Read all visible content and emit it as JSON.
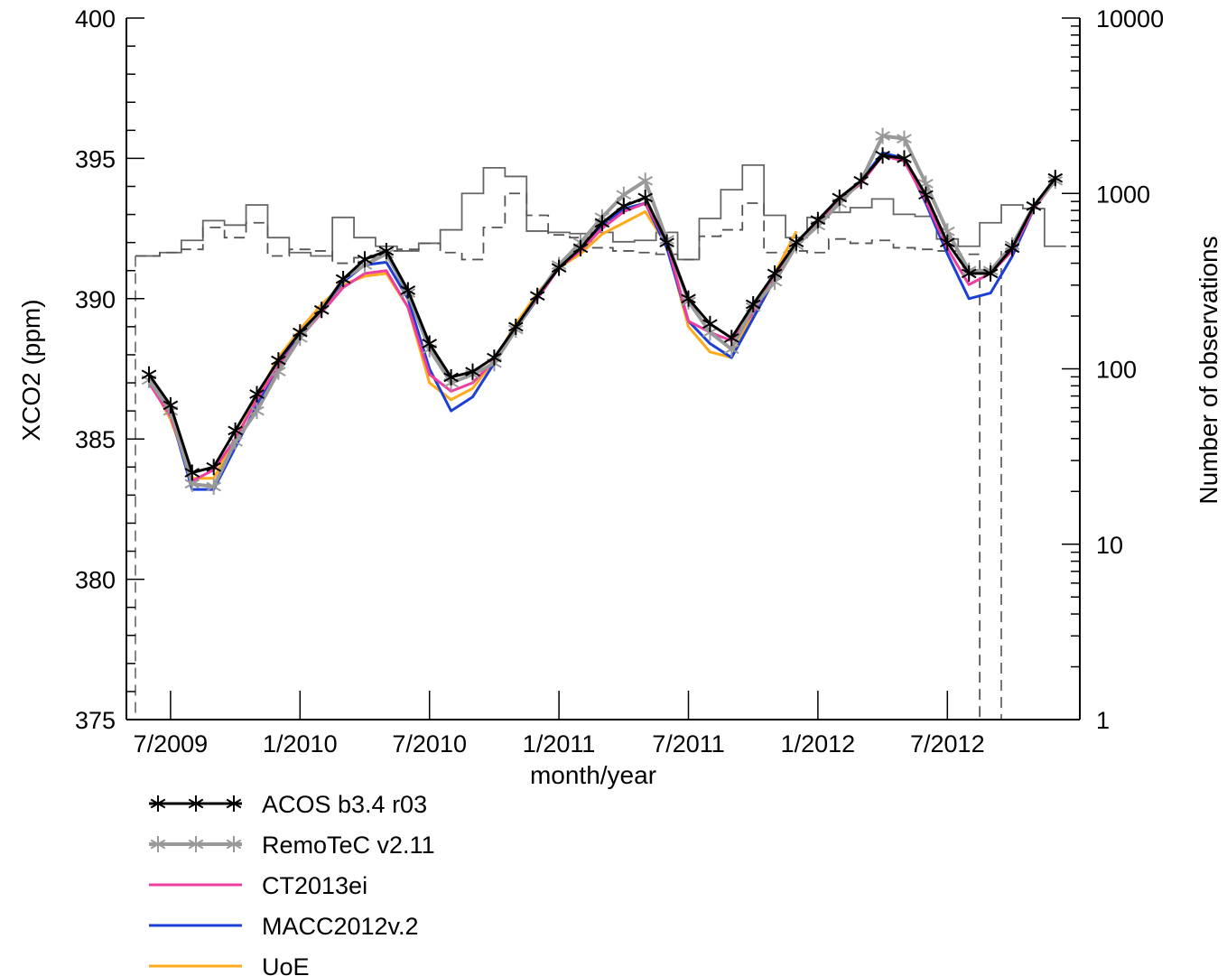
{
  "chart_data": {
    "type": "line",
    "title": "",
    "xlabel": "month/year",
    "ylabel": "XCO2 (ppm)",
    "y2label": "Number of observations",
    "ylim": [
      375,
      400
    ],
    "y2lim": [
      1,
      10000
    ],
    "y2scale": "log",
    "yticks": [
      "375",
      "380",
      "385",
      "390",
      "395",
      "400"
    ],
    "y2ticks": [
      "1",
      "10",
      "100",
      "1000",
      "10000"
    ],
    "xticks": [
      "7/2009",
      "1/2010",
      "7/2010",
      "1/2011",
      "7/2011",
      "1/2012",
      "7/2012"
    ],
    "x": [
      "6/2009",
      "7/2009",
      "8/2009",
      "9/2009",
      "10/2009",
      "11/2009",
      "12/2009",
      "1/2010",
      "2/2010",
      "3/2010",
      "4/2010",
      "5/2010",
      "6/2010",
      "7/2010",
      "8/2010",
      "9/2010",
      "10/2010",
      "11/2010",
      "12/2010",
      "1/2011",
      "2/2011",
      "3/2011",
      "4/2011",
      "5/2011",
      "6/2011",
      "7/2011",
      "8/2011",
      "9/2011",
      "10/2011",
      "11/2011",
      "12/2011",
      "1/2012",
      "2/2012",
      "3/2012",
      "4/2012",
      "5/2012",
      "6/2012",
      "7/2012",
      "8/2012",
      "9/2012",
      "10/2012",
      "11/2012",
      "12/2012"
    ],
    "series": [
      {
        "name": "ACOS b3.4 r03",
        "color": "#000000",
        "marker": "star",
        "values": [
          387.3,
          386.2,
          383.8,
          384.0,
          385.3,
          386.6,
          387.8,
          388.8,
          389.6,
          390.7,
          391.4,
          391.7,
          390.3,
          388.4,
          387.2,
          387.4,
          387.9,
          389.0,
          390.1,
          391.1,
          391.8,
          392.7,
          393.3,
          393.6,
          392.0,
          390.0,
          389.1,
          388.6,
          389.8,
          390.9,
          392.0,
          392.8,
          393.6,
          394.2,
          395.1,
          395.0,
          393.7,
          392.0,
          390.9,
          390.9,
          391.8,
          393.3,
          394.3
        ]
      },
      {
        "name": "RemoTeC v2.11",
        "color": "#999999",
        "marker": "star",
        "values": [
          387.1,
          386.0,
          383.4,
          383.3,
          384.9,
          386.0,
          387.4,
          388.6,
          389.6,
          390.7,
          391.2,
          391.6,
          390.2,
          388.2,
          387.0,
          387.3,
          387.7,
          388.9,
          390.1,
          391.2,
          392.0,
          392.9,
          393.7,
          394.2,
          392.1,
          389.9,
          388.8,
          388.2,
          389.7,
          390.6,
          391.9,
          392.6,
          393.4,
          394.2,
          395.8,
          395.7,
          394.1,
          392.4,
          391.0,
          391.0,
          391.9,
          393.3,
          394.2
        ]
      },
      {
        "name": "CT2013ei",
        "color": "#ee3fa0",
        "marker": "none",
        "values": [
          387.0,
          385.8,
          383.5,
          383.9,
          385.0,
          386.4,
          387.6,
          388.6,
          389.5,
          390.4,
          390.9,
          391.0,
          389.7,
          387.3,
          386.7,
          387.0,
          387.8,
          389.0,
          390.0,
          391.1,
          391.7,
          392.5,
          393.1,
          393.4,
          392.0,
          389.2,
          388.8,
          388.5,
          389.5,
          390.8,
          391.9,
          392.7,
          393.5,
          394.1,
          395.1,
          394.9,
          393.5,
          391.8,
          390.5,
          390.9,
          391.7,
          393.2,
          394.2
        ]
      },
      {
        "name": "MACC2012v.2",
        "color": "#1c3fd6",
        "marker": "none",
        "values": [
          387.0,
          385.9,
          383.2,
          383.2,
          384.7,
          386.2,
          387.6,
          388.7,
          389.6,
          390.6,
          391.2,
          391.3,
          390.0,
          387.5,
          386.0,
          386.5,
          387.7,
          388.9,
          390.0,
          391.1,
          391.8,
          392.6,
          393.2,
          393.4,
          391.8,
          389.2,
          388.4,
          387.9,
          389.3,
          390.7,
          392.0,
          392.7,
          393.5,
          394.2,
          395.2,
          395.0,
          393.4,
          391.6,
          390.0,
          390.2,
          391.5,
          393.2,
          394.3
        ]
      },
      {
        "name": "UoE",
        "color": "#ffaa1a",
        "marker": "none",
        "values": [
          387.1,
          385.7,
          383.6,
          383.6,
          385.0,
          386.5,
          387.9,
          388.9,
          389.8,
          390.5,
          390.8,
          390.9,
          389.7,
          387.0,
          386.4,
          386.8,
          387.8,
          389.1,
          390.2,
          391.1,
          391.6,
          392.3,
          392.7,
          393.1,
          391.9,
          389.0,
          388.1,
          387.9,
          389.5,
          390.9,
          392.4,
          null,
          null,
          null,
          null,
          null,
          null,
          null,
          null,
          null,
          null,
          null,
          null
        ]
      }
    ],
    "observation_steps": [
      {
        "name": "observations (solid)",
        "style": "solid",
        "values": [
          440,
          460,
          540,
          700,
          660,
          860,
          560,
          460,
          440,
          730,
          560,
          500,
          470,
          520,
          620,
          1000,
          1400,
          1250,
          610,
          600,
          590,
          600,
          530,
          540,
          600,
          420,
          720,
          1050,
          1450,
          750,
          560,
          730,
          780,
          830,
          930,
          760,
          740,
          550,
          500,
          680,
          860,
          820,
          500
        ]
      },
      {
        "name": "observations (dashed)",
        "style": "dashed",
        "values": [
          440,
          460,
          480,
          640,
          560,
          680,
          440,
          480,
          470,
          400,
          430,
          470,
          480,
          520,
          460,
          420,
          640,
          1000,
          750,
          580,
          560,
          490,
          470,
          460,
          450,
          420,
          570,
          620,
          880,
          460,
          470,
          460,
          550,
          520,
          540,
          490,
          480,
          470,
          450,
          1,
          1,
          1,
          1
        ]
      }
    ]
  },
  "legend": [
    {
      "label": "ACOS b3.4 r03",
      "color": "#000000",
      "marker": "star",
      "width": 3
    },
    {
      "label": "RemoTeC v2.11",
      "color": "#999999",
      "marker": "star",
      "width": 4
    },
    {
      "label": "CT2013ei",
      "color": "#ee3fa0",
      "marker": "none",
      "width": 3
    },
    {
      "label": "MACC2012v.2",
      "color": "#1c3fd6",
      "marker": "none",
      "width": 3
    },
    {
      "label": "UoE",
      "color": "#ffaa1a",
      "marker": "none",
      "width": 3
    }
  ]
}
